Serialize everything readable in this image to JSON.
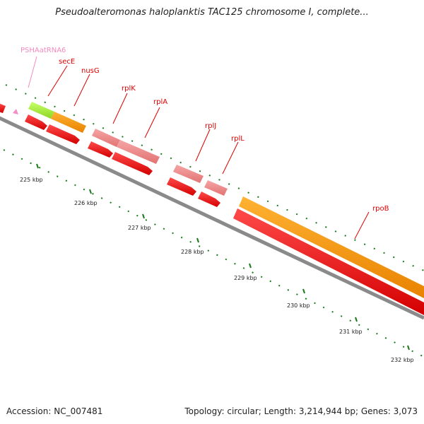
{
  "title": "Pseudoalteromonas haloplanktis TAC125 chromosome I, complete...",
  "footer": {
    "accession": "Accession: NC_007481",
    "topology": "Topology: circular; Length: 3,214,944 bp; Genes: 3,073"
  },
  "scale_labels": [
    "225 kbp",
    "226 kbp",
    "227 kbp",
    "228 kbp",
    "229 kbp",
    "230 kbp",
    "231 kbp",
    "232 kbp"
  ],
  "gene_labels": [
    {
      "name": "PSHAatRNA6",
      "color": "#f28bbf"
    },
    {
      "name": "secE",
      "color": "#dd0000"
    },
    {
      "name": "nusG",
      "color": "#dd0000"
    },
    {
      "name": "rplK",
      "color": "#dd0000"
    },
    {
      "name": "rplA",
      "color": "#dd0000"
    },
    {
      "name": "rplJ",
      "color": "#dd0000"
    },
    {
      "name": "rplL",
      "color": "#dd0000"
    },
    {
      "name": "rpoB",
      "color": "#dd0000"
    }
  ],
  "colors": {
    "backbone": "#8a8a8a",
    "cds": "#ff0000",
    "gene": "#ff9900",
    "rrna_light": "#ee7f7f",
    "trna": "#99ee33",
    "tick": "#1a7a1a"
  }
}
